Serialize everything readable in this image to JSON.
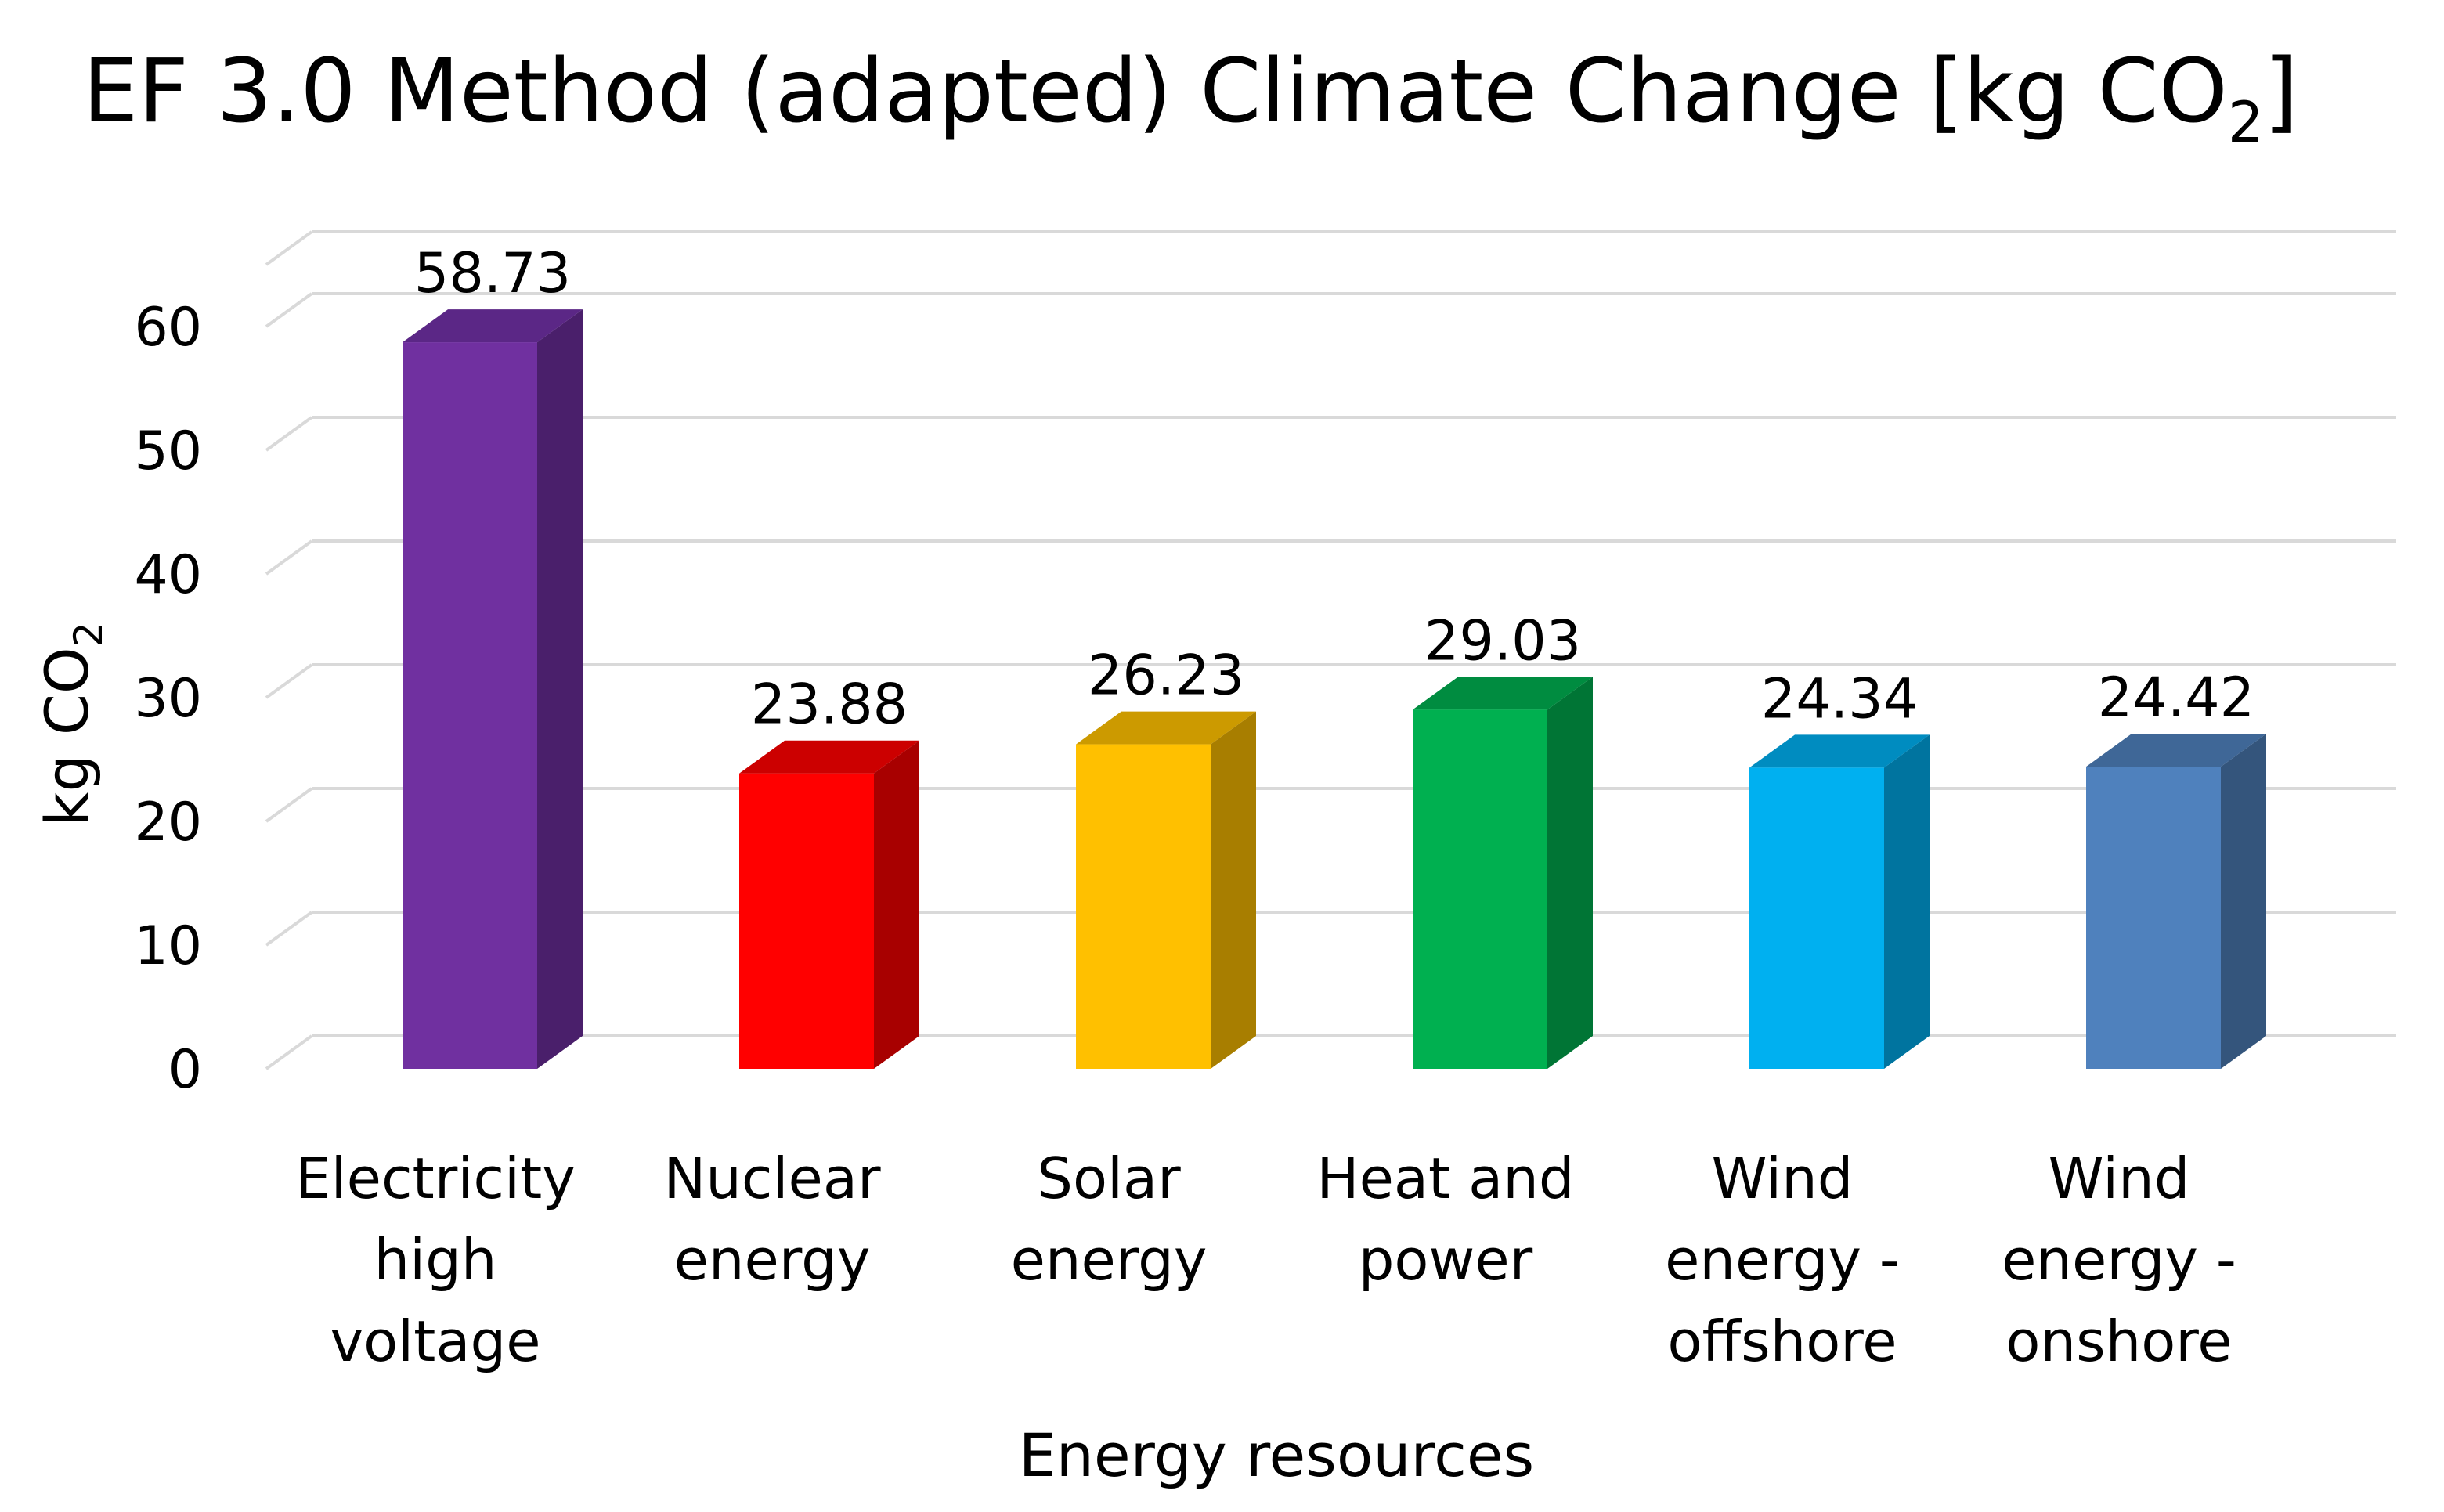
{
  "chart_data": {
    "type": "bar",
    "style": "3d-column",
    "title": {
      "main": "EF 3.0 Method (adapted) Climate Change [kg CO",
      "subscript": "2",
      "suffix": "]"
    },
    "xlabel": "Energy resources",
    "ylabel": {
      "main": "kg CO",
      "subscript": "2"
    },
    "ylim": [
      0,
      65
    ],
    "yticks": [
      "0",
      "10",
      "20",
      "30",
      "40",
      "50",
      "60"
    ],
    "grid": true,
    "categories": [
      [
        "Electricity",
        "high",
        "voltage"
      ],
      [
        "Nuclear",
        "energy"
      ],
      [
        "Solar",
        "energy"
      ],
      [
        "Heat and",
        "power"
      ],
      [
        "Wind",
        "energy -",
        "offshore"
      ],
      [
        "Wind",
        "energy -",
        "onshore"
      ]
    ],
    "values": [
      58.73,
      23.88,
      26.23,
      29.03,
      24.34,
      24.42
    ],
    "value_labels": [
      "58.73",
      "23.88",
      "26.23",
      "29.03",
      "24.34",
      "24.42"
    ],
    "colors": [
      {
        "front": "#7030a0",
        "side": "#4a1f6b",
        "top": "#5b2786"
      },
      {
        "front": "#ff0000",
        "side": "#a80000",
        "top": "#cc0000"
      },
      {
        "front": "#ffc000",
        "side": "#a87e00",
        "top": "#cc9a00"
      },
      {
        "front": "#00b050",
        "side": "#007535",
        "top": "#008c40"
      },
      {
        "front": "#00b0f0",
        "side": "#00749f",
        "top": "#008cc0"
      },
      {
        "front": "#4f81bd",
        "side": "#34557c",
        "top": "#3f6797"
      }
    ],
    "gridline_color": "#d9d9d9"
  }
}
